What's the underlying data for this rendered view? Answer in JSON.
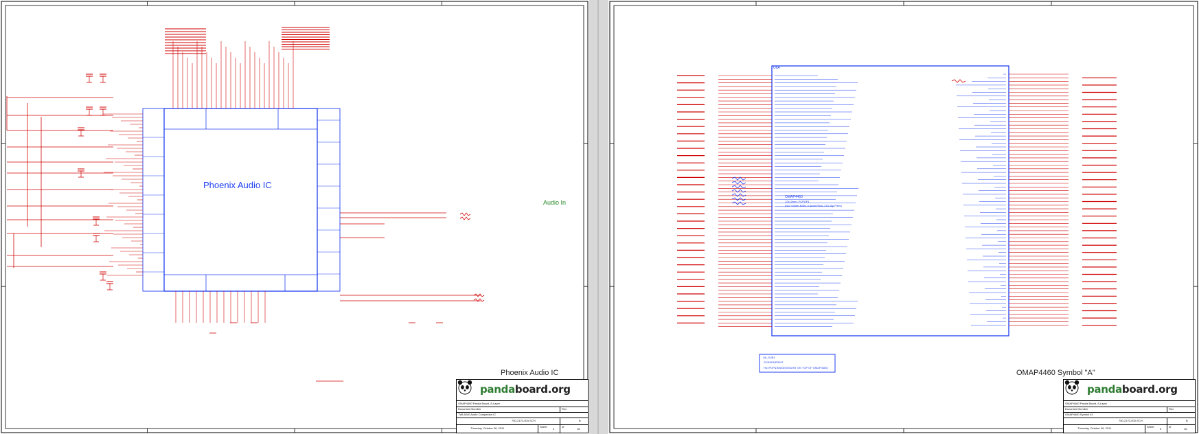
{
  "left_sheet": {
    "chip_title": "Phoenix Audio IC",
    "net_label": "Audio In",
    "sheet_caption": "Phoenix Audio IC",
    "title_block": {
      "brand_prefix": "panda",
      "brand_suffix": "board.org",
      "project": "OMAP4460 Panda Board, 8-Layer",
      "document_label": "Document Number",
      "sheet_title": "TWL6040 Audio Companion IC",
      "doc_number": "750-2170-003-SCH",
      "rev_label": "Rev",
      "rev": "B",
      "date": "Thursday, October 06, 2011",
      "sheet_label": "Sheet",
      "sheet_no": "4",
      "of_label": "of",
      "total": "16"
    }
  },
  "right_sheet": {
    "chip_ref": "U6A",
    "chip_name": "OMAP4460",
    "chip_desc_1": "12x12mm, FCPOP1",
    "chip_desc_2": "(547 Solder Balls, 0.4mm Pitch, 216 Top Pads)",
    "note_ref": "U6_SUB1",
    "note_1": "SCREENPRINT",
    "note_2": "H4=POP&INSIDE(MOUNT ON TOP OF OMAP4460)",
    "sheet_caption": "OMAP4460 Symbol \"A\"",
    "title_block": {
      "brand_prefix": "panda",
      "brand_suffix": "board.org",
      "project": "OMAP4460 Panda Board, 8-Layer",
      "document_label": "Document Number",
      "sheet_title": "OMAP4460 Symbol #1",
      "doc_number": "750-2170-003-SCH",
      "rev_label": "Rev",
      "rev": "B",
      "date": "Thursday, October 06, 2011",
      "sheet_label": "Sheet",
      "sheet_no": "5",
      "of_label": "of",
      "total": "16"
    }
  },
  "colors": {
    "wire": "#d00000",
    "chip": "#1f3ff0",
    "label_green": "#2a8a2a",
    "brand_green": "#2e7d32"
  }
}
